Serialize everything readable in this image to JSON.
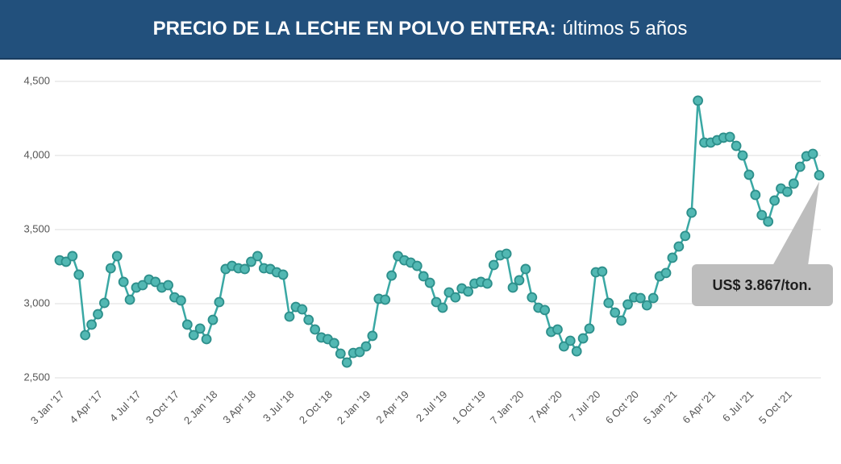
{
  "chart_data": {
    "type": "line",
    "title": "PRECIO DE LA LECHE EN POLVO ENTERA:",
    "subtitle": "últimos 5 años",
    "annotation": "US$ 3.867/ton.",
    "color": "#3aa8a4",
    "categories": [
      "3 Jan '17",
      null,
      null,
      null,
      null,
      null,
      "4 Apr '17",
      null,
      null,
      null,
      null,
      null,
      "4 Jul '17",
      null,
      null,
      null,
      null,
      null,
      "3 Oct '17",
      null,
      null,
      null,
      null,
      null,
      "2 Jan '18",
      null,
      null,
      null,
      null,
      null,
      "3 Apr '18",
      null,
      null,
      null,
      null,
      null,
      "3 Jul '18",
      null,
      null,
      null,
      null,
      null,
      "2 Oct '18",
      null,
      null,
      null,
      null,
      null,
      "2 Jan '19",
      null,
      null,
      null,
      null,
      null,
      "2 Apr '19",
      null,
      null,
      null,
      null,
      null,
      "2 Jul '19",
      null,
      null,
      null,
      null,
      null,
      "1 Oct '19",
      null,
      null,
      null,
      null,
      null,
      "7 Jan '20",
      null,
      null,
      null,
      null,
      null,
      "7 Apr '20",
      null,
      null,
      null,
      null,
      null,
      "7 Jul '20",
      null,
      null,
      null,
      null,
      null,
      "6 Oct '20",
      null,
      null,
      null,
      null,
      null,
      "5 Jan '21",
      null,
      null,
      null,
      null,
      null,
      "6 Apr '21",
      null,
      null,
      null,
      null,
      null,
      "6 Jul '21",
      null,
      null,
      null,
      null,
      null,
      "5 Oct '21",
      null,
      null,
      null,
      null,
      null
    ],
    "values": [
      3293,
      3283,
      3321,
      3196,
      2788,
      2859,
      2929,
      3005,
      3239,
      3321,
      3147,
      3027,
      3109,
      3125,
      3163,
      3147,
      3109,
      3125,
      3043,
      3022,
      2859,
      2788,
      2832,
      2761,
      2891,
      3011,
      3234,
      3255,
      3239,
      3234,
      3283,
      3321,
      3239,
      3234,
      3212,
      3196,
      2913,
      2978,
      2962,
      2891,
      2826,
      2772,
      2761,
      2734,
      2663,
      2603,
      2668,
      2674,
      2712,
      2783,
      3033,
      3027,
      3190,
      3321,
      3293,
      3277,
      3255,
      3185,
      3141,
      3011,
      2973,
      3076,
      3043,
      3103,
      3082,
      3136,
      3147,
      3136,
      3261,
      3326,
      3337,
      3109,
      3158,
      3234,
      3043,
      2973,
      2957,
      2810,
      2826,
      2712,
      2750,
      2679,
      2766,
      2832,
      3212,
      3217,
      3005,
      2940,
      2886,
      2995,
      3043,
      3038,
      2989,
      3038,
      3185,
      3207,
      3310,
      3386,
      3457,
      3614,
      4370,
      4087,
      4087,
      4103,
      4120,
      4125,
      4065,
      4000,
      3870,
      3734,
      3598,
      3554,
      3696,
      3777,
      3755,
      3810,
      3924,
      3995,
      4011,
      3867
    ],
    "ylim": [
      2500,
      4500
    ],
    "yticks": [
      {
        "value": 2500,
        "label": "2,500"
      },
      {
        "value": 3000,
        "label": "3,000"
      },
      {
        "value": 3500,
        "label": "3,500"
      },
      {
        "value": 4000,
        "label": "4,000"
      },
      {
        "value": 4500,
        "label": "4,500"
      }
    ],
    "grid": true
  }
}
